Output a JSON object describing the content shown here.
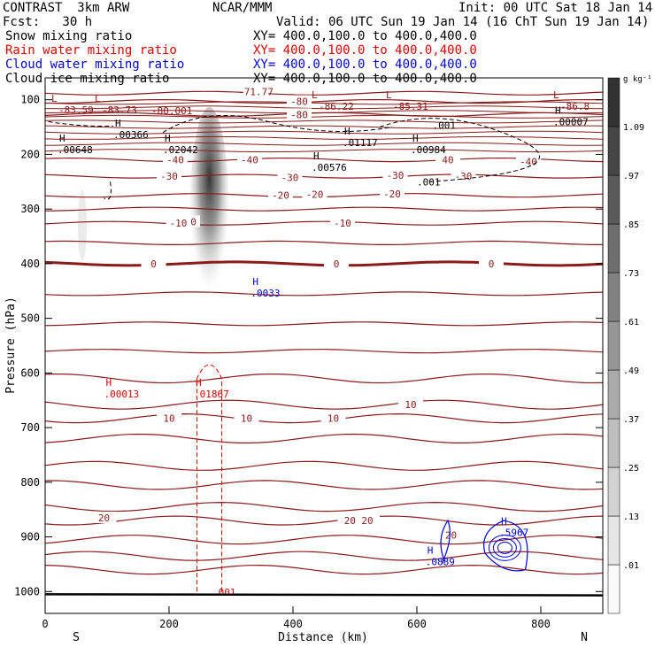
{
  "header": {
    "model": "CONTRAST  3km ARW",
    "org": "NCAR/MMM",
    "init": "Init: 00 UTC Sat 18 Jan 14",
    "fcst": "Fcst:   30 h",
    "valid": "Valid: 06 UTC Sun 19 Jan 14 (16 ChT Sun 19 Jan 14)"
  },
  "legend": [
    {
      "label": "Snow mixing ratio",
      "xy": "",
      "color": "#000000"
    },
    {
      "label": "Rain water mixing ratio",
      "xy": "XY= 400.0,100.0 to 400.0,400.0",
      "color": "#e00000"
    },
    {
      "label": "Cloud water mixing ratio",
      "xy": "XY= 400.0,100.0 to 400.0,400.0",
      "color": "#0000e0"
    },
    {
      "label": "Cloud ice mixing ratio",
      "xy": "XY= 400.0,100.0 to 400.0,400.0",
      "color": "#000000"
    }
  ],
  "snow_xy": "XY= 400.0,100.0 to 400.0,400.0",
  "chart_data": {
    "type": "heatmap",
    "xlabel": "Distance (km)",
    "ylabel": "Pressure (hPa)",
    "x_ticks": [
      "0",
      "200",
      "400",
      "600",
      "800"
    ],
    "y_ticks": [
      "100",
      "200",
      "300",
      "400",
      "500",
      "600",
      "700",
      "800",
      "900",
      "1000"
    ],
    "xlim": [
      0,
      900
    ],
    "ylim": [
      1040,
      60
    ],
    "end_labels": {
      "left": "S",
      "right": "N"
    },
    "colorbar": {
      "unit": "g kg⁻¹",
      "levels": [
        ".01",
        ".13",
        ".25",
        ".37",
        ".49",
        ".61",
        ".73",
        ".85",
        ".97",
        "1.09"
      ]
    },
    "temperature_contours": {
      "color": "#8b1a1a",
      "levels": [
        {
          "p": 85,
          "label": "-71.77"
        },
        {
          "p": 103,
          "label": "-80"
        },
        {
          "p": 127,
          "label": "-80"
        },
        {
          "p": 210,
          "label": "-40"
        },
        {
          "p": 210,
          "label": "-40"
        },
        {
          "p": 210,
          "label": "40"
        },
        {
          "p": 213,
          "label": "-40"
        },
        {
          "p": 240,
          "label": "-30"
        },
        {
          "p": 242,
          "label": "-30"
        },
        {
          "p": 238,
          "label": "-30"
        },
        {
          "p": 240,
          "label": "-30"
        },
        {
          "p": 275,
          "label": "-20"
        },
        {
          "p": 273,
          "label": "-20"
        },
        {
          "p": 272,
          "label": "-20"
        },
        {
          "p": 323,
          "label": "-10"
        },
        {
          "p": 326,
          "label": "-10"
        },
        {
          "p": 326,
          "label": "-10"
        },
        {
          "p": 400,
          "label": "0"
        },
        {
          "p": 400,
          "label": "0"
        },
        {
          "p": 400,
          "label": "0"
        },
        {
          "p": 683,
          "label": "10"
        },
        {
          "p": 683,
          "label": "10"
        },
        {
          "p": 683,
          "label": "10"
        },
        {
          "p": 658,
          "label": "10"
        },
        {
          "p": 865,
          "label": "20"
        },
        {
          "p": 870,
          "label": "20"
        },
        {
          "p": 870,
          "label": "20"
        },
        {
          "p": 897,
          "label": "20"
        }
      ],
      "minima": [
        {
          "label": "L",
          "value": "-83.59"
        },
        {
          "label": "L",
          "value": "-83.73"
        },
        {
          "label": "",
          "value": "-80.001"
        },
        {
          "label": "L",
          "value": "-86.22"
        },
        {
          "label": "L",
          "value": "-85.31"
        },
        {
          "label": "L",
          "value": "-86.8"
        }
      ]
    },
    "cloud_ice_maxima": [
      {
        "label": "H",
        "value": ".00366"
      },
      {
        "label": "H",
        "value": ".00648"
      },
      {
        "label": "H",
        "value": ".02042"
      },
      {
        "label": "H",
        "value": ".01117"
      },
      {
        "label": "H",
        "value": ".00984"
      },
      {
        "label": "H",
        "value": ".00576"
      },
      {
        "label": "H",
        "value": ".00007"
      },
      {
        "label": "",
        "value": ".001"
      },
      {
        "label": "",
        "value": ".001"
      }
    ],
    "rain_maxima": [
      {
        "label": "H",
        "value": ".00013"
      },
      {
        "label": "H",
        "value": ".01867"
      },
      {
        "label": "",
        "value": ".001"
      }
    ],
    "cloud_water_maxima": [
      {
        "label": "H",
        "value": ".0033"
      },
      {
        "label": "H",
        "value": ".0889"
      },
      {
        "label": "H",
        "value": ".5967"
      }
    ]
  }
}
